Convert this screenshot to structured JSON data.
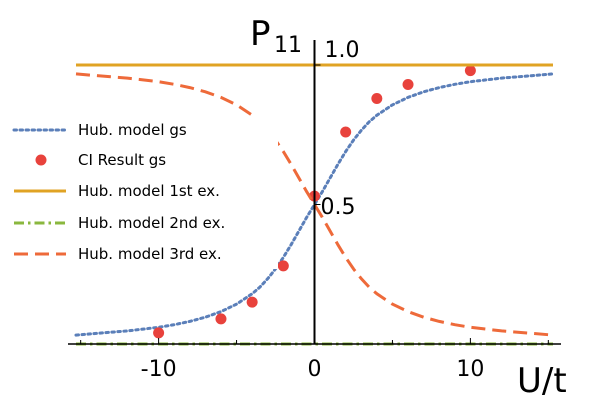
{
  "chart_data": {
    "type": "line",
    "xlabel": "U/t",
    "ylabel": "P",
    "ylabel_sub": "11",
    "xlim": [
      -15.3,
      15.3
    ],
    "ylim": [
      0,
      1.0
    ],
    "x_ticks": [
      {
        "value": -10,
        "label": "-10"
      },
      {
        "value": 0,
        "label": "0"
      },
      {
        "value": 10,
        "label": "10"
      }
    ],
    "y_ticks": [
      {
        "value": 0.5,
        "label": "0.5"
      },
      {
        "value": 1.0,
        "label": "1.0"
      }
    ],
    "grid": false,
    "legend_position": "left",
    "series": [
      {
        "name": "Hub. model gs",
        "style": "dotted",
        "color": "#5b7fb9",
        "x": [
          -15.3,
          -14,
          -12,
          -10,
          -9,
          -8,
          -7,
          -6,
          -5,
          -4,
          -3.5,
          -3,
          -2.5,
          -2,
          -1.5,
          -1,
          -0.5,
          0,
          0.5,
          1,
          1.5,
          2,
          2.5,
          3,
          3.5,
          4,
          5,
          6,
          7,
          8,
          9,
          10,
          12,
          14,
          15.3
        ],
        "y": [
          0.032,
          0.038,
          0.047,
          0.06,
          0.069,
          0.081,
          0.096,
          0.116,
          0.143,
          0.18,
          0.204,
          0.234,
          0.269,
          0.31,
          0.356,
          0.405,
          0.454,
          0.5,
          0.546,
          0.595,
          0.644,
          0.69,
          0.731,
          0.766,
          0.796,
          0.82,
          0.857,
          0.884,
          0.904,
          0.919,
          0.931,
          0.94,
          0.953,
          0.962,
          0.968
        ]
      },
      {
        "name": "CI Result gs",
        "style": "markers",
        "color": "#e8423c",
        "x": [
          -10,
          -6,
          -4,
          -2,
          0,
          2,
          4,
          6,
          10
        ],
        "y": [
          0.04,
          0.09,
          0.15,
          0.28,
          0.53,
          0.76,
          0.88,
          0.93,
          0.98
        ]
      },
      {
        "name": "Hub. model 1st ex.",
        "style": "solid",
        "color": "#e0a324",
        "x": [
          -15.3,
          15.3
        ],
        "y": [
          1.0,
          1.0
        ]
      },
      {
        "name": "Hub. model 2nd ex.",
        "style": "dashdot",
        "color": "#8ab73e",
        "x": [
          -15.3,
          15.3
        ],
        "y": [
          0.0,
          0.0
        ]
      },
      {
        "name": "Hub. model 3rd ex.",
        "style": "dashed",
        "color": "#ee6a3a",
        "x": [
          -15.3,
          -14,
          -12,
          -10,
          -9,
          -8,
          -7,
          -6,
          -5,
          -4,
          -3.5,
          -3,
          -2.5,
          -2,
          -1.5,
          -1,
          -0.5,
          0,
          0.5,
          1,
          1.5,
          2,
          2.5,
          3,
          3.5,
          4,
          5,
          6,
          7,
          8,
          9,
          10,
          12,
          14,
          15.3
        ],
        "y": [
          0.968,
          0.962,
          0.953,
          0.94,
          0.931,
          0.919,
          0.904,
          0.884,
          0.857,
          0.82,
          0.796,
          0.766,
          0.731,
          0.69,
          0.644,
          0.595,
          0.546,
          0.5,
          0.454,
          0.405,
          0.356,
          0.31,
          0.269,
          0.234,
          0.204,
          0.18,
          0.143,
          0.116,
          0.096,
          0.081,
          0.069,
          0.06,
          0.047,
          0.038,
          0.032
        ]
      }
    ]
  }
}
